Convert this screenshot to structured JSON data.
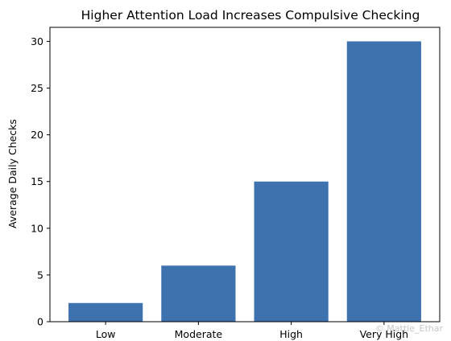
{
  "chart_data": {
    "type": "bar",
    "title": "Higher Attention Load Increases Compulsive Checking",
    "xlabel": "",
    "ylabel": "Average Daily Checks",
    "categories": [
      "Low",
      "Moderate",
      "High",
      "Very High"
    ],
    "values": [
      2,
      6,
      15,
      30
    ],
    "ylim": [
      0,
      31.5
    ],
    "yticks": [
      0,
      5,
      10,
      15,
      20,
      25,
      30
    ],
    "bar_color": "#3d72ae",
    "grid": false,
    "legend": "none"
  },
  "watermark": "© Mattie_Ethar"
}
